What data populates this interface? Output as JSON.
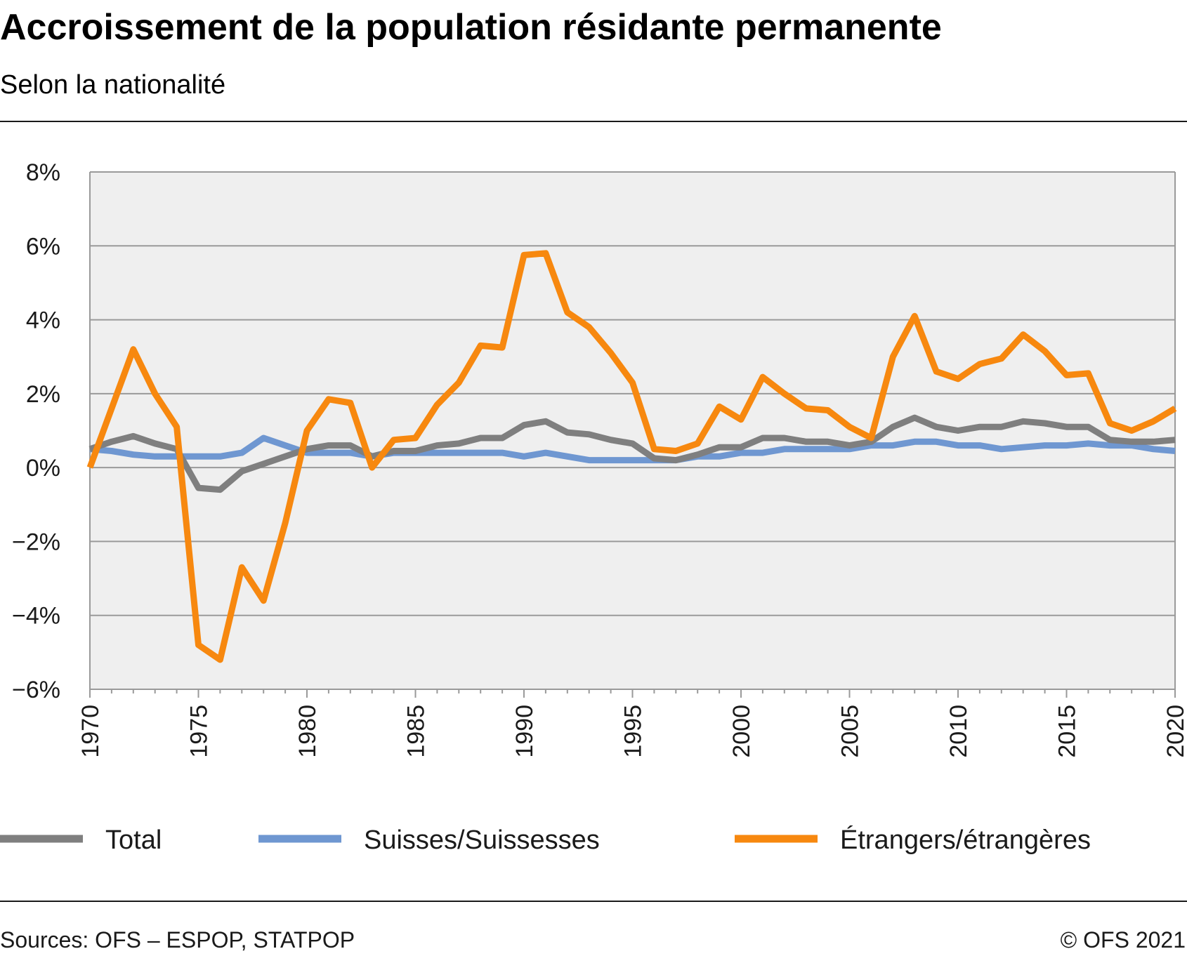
{
  "header": {
    "title": "Accroissement de la population résidante permanente",
    "subtitle": "Selon la nationalité"
  },
  "footer": {
    "source": "Sources: OFS – ESPOP, STATPOP",
    "copyright": "© OFS 2021"
  },
  "colors": {
    "total": "#7f7f7f",
    "suisses": "#6f97d1",
    "etrangers": "#f7880f",
    "plot_bg": "#efefef",
    "grid": "#9a9a9a"
  },
  "chart_data": {
    "type": "line",
    "title": "Accroissement de la population résidante permanente",
    "subtitle": "Selon la nationalité",
    "xlabel": "",
    "ylabel": "",
    "xlim": [
      1970,
      2020
    ],
    "ylim": [
      -6,
      8
    ],
    "x_ticks": [
      1970,
      1975,
      1980,
      1985,
      1990,
      1995,
      2000,
      2005,
      2010,
      2015,
      2020
    ],
    "y_ticks": [
      {
        "value": 8,
        "label": "8%"
      },
      {
        "value": 6,
        "label": "6%"
      },
      {
        "value": 4,
        "label": "4%"
      },
      {
        "value": 2,
        "label": "2%"
      },
      {
        "value": 0,
        "label": "0%"
      },
      {
        "value": -2,
        "label": "−2%"
      },
      {
        "value": -4,
        "label": "−4%"
      },
      {
        "value": -6,
        "label": "−6%"
      }
    ],
    "grid": true,
    "legend_position": "bottom",
    "x": [
      1970,
      1971,
      1972,
      1973,
      1974,
      1975,
      1976,
      1977,
      1978,
      1979,
      1980,
      1981,
      1982,
      1983,
      1984,
      1985,
      1986,
      1987,
      1988,
      1989,
      1990,
      1991,
      1992,
      1993,
      1994,
      1995,
      1996,
      1997,
      1998,
      1999,
      2000,
      2001,
      2002,
      2003,
      2004,
      2005,
      2006,
      2007,
      2008,
      2009,
      2010,
      2011,
      2012,
      2013,
      2014,
      2015,
      2016,
      2017,
      2018,
      2019,
      2020
    ],
    "series": [
      {
        "name": "Total",
        "color": "#7f7f7f",
        "values": [
          0.5,
          0.7,
          0.85,
          0.65,
          0.5,
          -0.55,
          -0.6,
          -0.1,
          0.1,
          0.3,
          0.5,
          0.6,
          0.6,
          0.3,
          0.45,
          0.45,
          0.6,
          0.65,
          0.8,
          0.8,
          1.15,
          1.25,
          0.95,
          0.9,
          0.75,
          0.65,
          0.25,
          0.2,
          0.35,
          0.55,
          0.55,
          0.8,
          0.8,
          0.7,
          0.7,
          0.6,
          0.7,
          1.1,
          1.35,
          1.1,
          1.0,
          1.1,
          1.1,
          1.25,
          1.2,
          1.1,
          1.1,
          0.75,
          0.7,
          0.7,
          0.75
        ]
      },
      {
        "name": "Suisses/Suissesses",
        "color": "#6f97d1",
        "values": [
          0.5,
          0.45,
          0.35,
          0.3,
          0.3,
          0.3,
          0.3,
          0.4,
          0.8,
          0.6,
          0.4,
          0.4,
          0.4,
          0.3,
          0.4,
          0.4,
          0.4,
          0.4,
          0.4,
          0.4,
          0.3,
          0.4,
          0.3,
          0.2,
          0.2,
          0.2,
          0.2,
          0.2,
          0.3,
          0.3,
          0.4,
          0.4,
          0.5,
          0.5,
          0.5,
          0.5,
          0.6,
          0.6,
          0.7,
          0.7,
          0.6,
          0.6,
          0.5,
          0.55,
          0.6,
          0.6,
          0.65,
          0.6,
          0.6,
          0.5,
          0.45
        ]
      },
      {
        "name": "Étrangers/étrangères",
        "color": "#f7880f",
        "values": [
          0.0,
          1.6,
          3.2,
          2.0,
          1.1,
          -4.8,
          -5.2,
          -2.7,
          -3.6,
          -1.5,
          1.0,
          1.85,
          1.75,
          0.0,
          0.75,
          0.8,
          1.7,
          2.3,
          3.3,
          3.25,
          5.75,
          5.8,
          4.2,
          3.8,
          3.1,
          2.3,
          0.5,
          0.45,
          0.65,
          1.65,
          1.3,
          2.45,
          2.0,
          1.6,
          1.55,
          1.1,
          0.8,
          3.0,
          4.1,
          2.6,
          2.4,
          2.8,
          2.95,
          3.6,
          3.15,
          2.5,
          2.55,
          1.2,
          1.0,
          1.25,
          1.6
        ]
      }
    ]
  }
}
